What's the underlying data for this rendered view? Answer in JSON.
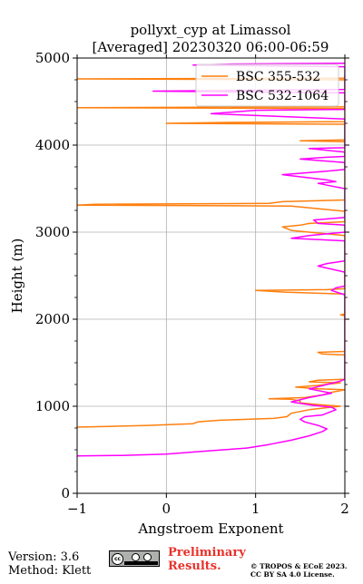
{
  "chart_data": {
    "type": "line",
    "title": "pollyxt_cyp at Limassol",
    "subtitle": "[Averaged] 20230320 06:00-06:59",
    "xlabel": "Angstroem Exponent",
    "ylabel": "Height (m)",
    "xlim": [
      -1,
      2
    ],
    "ylim": [
      0,
      5000
    ],
    "xticks": [
      -1,
      0,
      1,
      2
    ],
    "xtick_labels": [
      "−1",
      "0",
      "1",
      "2"
    ],
    "yticks": [
      0,
      1000,
      2000,
      3000,
      4000,
      5000
    ],
    "ytick_labels": [
      "0",
      "1000",
      "2000",
      "3000",
      "4000",
      "5000"
    ],
    "grid": true,
    "legend_position": "top-right",
    "series": [
      {
        "name": "BSC 355-532",
        "color": "#ff7f0e",
        "points": [
          [
            -1.0,
            760
          ],
          [
            -0.6,
            770
          ],
          [
            -0.2,
            780
          ],
          [
            0.3,
            800
          ],
          [
            0.35,
            820
          ],
          [
            0.6,
            840
          ],
          [
            0.9,
            850
          ],
          [
            1.2,
            860
          ],
          [
            1.35,
            880
          ],
          [
            1.4,
            920
          ],
          [
            1.6,
            960
          ],
          [
            1.85,
            990
          ],
          [
            1.95,
            1000
          ],
          [
            1.7,
            1020
          ],
          [
            1.5,
            1040
          ],
          [
            1.5,
            1060
          ],
          [
            1.4,
            1080
          ],
          [
            1.15,
            1085
          ],
          [
            1.55,
            1100
          ],
          [
            1.75,
            1130
          ],
          [
            1.85,
            1160
          ],
          [
            2.0,
            1190
          ],
          [
            1.7,
            1200
          ],
          [
            1.45,
            1220
          ],
          [
            1.7,
            1240
          ],
          [
            1.95,
            1270
          ],
          [
            1.6,
            1280
          ],
          [
            1.7,
            1300
          ],
          [
            2.0,
            1310
          ],
          [
            2.0,
            1590
          ],
          [
            1.75,
            1600
          ],
          [
            1.7,
            1620
          ],
          [
            2.0,
            1630
          ],
          [
            2.0,
            2040
          ],
          [
            1.95,
            2050
          ],
          [
            2.0,
            2060
          ],
          [
            2.0,
            2290
          ],
          [
            1.35,
            2310
          ],
          [
            1.0,
            2330
          ],
          [
            1.8,
            2340
          ],
          [
            2.0,
            2350
          ],
          [
            2.0,
            2960
          ],
          [
            1.6,
            3000
          ],
          [
            1.4,
            3020
          ],
          [
            1.3,
            3060
          ],
          [
            1.5,
            3080
          ],
          [
            1.6,
            3100
          ],
          [
            2.0,
            3120
          ],
          [
            2.0,
            3240
          ],
          [
            1.4,
            3300
          ],
          [
            -1.0,
            3310
          ],
          [
            -0.8,
            3320
          ],
          [
            1.15,
            3330
          ],
          [
            1.3,
            3350
          ],
          [
            2.0,
            3370
          ],
          [
            2.0,
            4040
          ],
          [
            1.5,
            4050
          ],
          [
            2.0,
            4060
          ],
          [
            2.0,
            4240
          ],
          [
            0.0,
            4250
          ],
          [
            0.7,
            4260
          ],
          [
            2.0,
            4270
          ],
          [
            2.0,
            4300
          ],
          [
            2.0,
            4420
          ],
          [
            -1.0,
            4430
          ],
          [
            2.0,
            4440
          ],
          [
            2.0,
            4750
          ],
          [
            -1.0,
            4760
          ],
          [
            2.0,
            4770
          ],
          [
            2.0,
            4800
          ]
        ]
      },
      {
        "name": "BSC 532-1064",
        "color": "#ff00ff",
        "points": [
          [
            -1.0,
            430
          ],
          [
            -0.5,
            435
          ],
          [
            0.0,
            450
          ],
          [
            0.5,
            490
          ],
          [
            0.9,
            520
          ],
          [
            1.15,
            560
          ],
          [
            1.4,
            610
          ],
          [
            1.6,
            660
          ],
          [
            1.75,
            710
          ],
          [
            1.8,
            740
          ],
          [
            1.7,
            780
          ],
          [
            1.55,
            820
          ],
          [
            1.5,
            850
          ],
          [
            1.55,
            880
          ],
          [
            1.75,
            900
          ],
          [
            1.9,
            960
          ],
          [
            1.85,
            990
          ],
          [
            1.65,
            1010
          ],
          [
            1.4,
            1050
          ],
          [
            1.6,
            1100
          ],
          [
            1.7,
            1120
          ],
          [
            1.85,
            1150
          ],
          [
            1.7,
            1180
          ],
          [
            1.6,
            1200
          ],
          [
            1.8,
            1250
          ],
          [
            1.95,
            1290
          ],
          [
            2.0,
            1310
          ],
          [
            2.0,
            2280
          ],
          [
            1.85,
            2330
          ],
          [
            1.9,
            2360
          ],
          [
            2.0,
            2380
          ],
          [
            2.0,
            2540
          ],
          [
            1.7,
            2610
          ],
          [
            1.8,
            2640
          ],
          [
            2.0,
            2670
          ],
          [
            2.0,
            2900
          ],
          [
            1.4,
            2930
          ],
          [
            1.6,
            2960
          ],
          [
            2.0,
            3000
          ],
          [
            2.0,
            3080
          ],
          [
            1.7,
            3100
          ],
          [
            1.65,
            3140
          ],
          [
            1.9,
            3160
          ],
          [
            2.0,
            3170
          ],
          [
            2.0,
            3500
          ],
          [
            1.8,
            3540
          ],
          [
            1.7,
            3560
          ],
          [
            1.9,
            3580
          ],
          [
            1.8,
            3600
          ],
          [
            1.3,
            3660
          ],
          [
            1.8,
            3700
          ],
          [
            2.0,
            3720
          ],
          [
            2.0,
            3800
          ],
          [
            1.5,
            3840
          ],
          [
            1.8,
            3860
          ],
          [
            2.0,
            3870
          ],
          [
            2.0,
            3920
          ],
          [
            1.6,
            3960
          ],
          [
            2.0,
            3970
          ],
          [
            2.0,
            4300
          ],
          [
            0.5,
            4360
          ],
          [
            1.0,
            4400
          ],
          [
            2.0,
            4410
          ],
          [
            2.0,
            4600
          ],
          [
            -0.15,
            4620
          ],
          [
            2.0,
            4640
          ],
          [
            2.0,
            4900
          ],
          [
            0.3,
            4920
          ],
          [
            0.7,
            4930
          ],
          [
            2.0,
            4940
          ]
        ]
      }
    ]
  },
  "footer": {
    "version": "Version: 3.6",
    "method": "Method: Klett",
    "preliminary_line1": "Preliminary",
    "preliminary_line2": "Results.",
    "copyright_line1": "© TROPOS & ECoE 2023.",
    "copyright_line2": "CC BY SA 4.0 License.",
    "license_badge": "cc",
    "license_badge_icons": "by-sa-icons"
  }
}
